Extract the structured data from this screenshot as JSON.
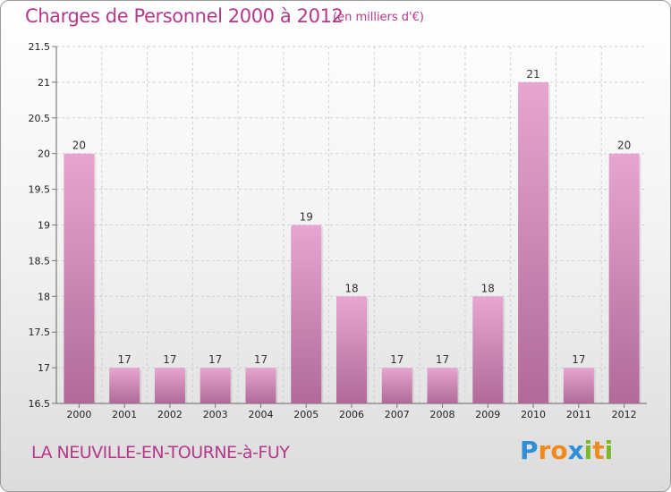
{
  "title": "Charges de Personnel 2000 à 2012",
  "subtitle": "(en milliers d'€)",
  "place_name": "LA NEUVILLE-EN-TOURNE-à-FUY",
  "logo": {
    "text": "Proxiti",
    "letters": [
      {
        "char": "P",
        "color": "#2f8fd6"
      },
      {
        "char": "r",
        "color": "#f08a1c"
      },
      {
        "char": "o",
        "color": "#f08a1c"
      },
      {
        "char": "x",
        "color": "#2f8fd6"
      },
      {
        "char": "i",
        "color": "#7ab829"
      },
      {
        "char": "t",
        "color": "#f08a1c"
      },
      {
        "char": "i",
        "color": "#7ab829"
      }
    ]
  },
  "colors": {
    "title": "#b5388a",
    "bar_light": "#e6a6cf",
    "bar_dark": "#b06a98",
    "grid": "#cfcfcf",
    "axis_text": "#222222"
  },
  "chart_data": {
    "type": "bar",
    "categories": [
      "2000",
      "2001",
      "2002",
      "2003",
      "2004",
      "2005",
      "2006",
      "2007",
      "2008",
      "2009",
      "2010",
      "2011",
      "2012"
    ],
    "values": [
      20,
      17,
      17,
      17,
      17,
      19,
      18,
      17,
      17,
      18,
      21,
      17,
      20
    ],
    "ylim": [
      16.5,
      21.5
    ],
    "yticks": [
      16.5,
      17,
      17.5,
      18,
      18.5,
      19,
      19.5,
      20,
      20.5,
      21,
      21.5
    ],
    "ytick_labels": [
      "16.5",
      "17",
      "17.5",
      "18",
      "18.5",
      "19",
      "19.5",
      "20",
      "20.5",
      "21",
      "21.5"
    ],
    "data_labels": [
      "20",
      "17",
      "17",
      "17",
      "17",
      "19",
      "18",
      "17",
      "17",
      "18",
      "21",
      "17",
      "20"
    ],
    "grid": true,
    "legend": "none"
  }
}
